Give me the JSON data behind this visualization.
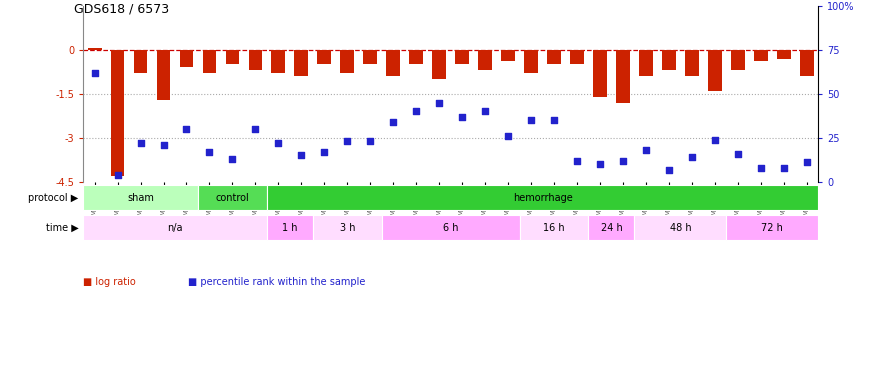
{
  "title": "GDS618 / 6573",
  "samples": [
    "GSM16636",
    "GSM16640",
    "GSM16641",
    "GSM16642",
    "GSM16643",
    "GSM16644",
    "GSM16637",
    "GSM16638",
    "GSM16639",
    "GSM16645",
    "GSM16646",
    "GSM16647",
    "GSM16648",
    "GSM16649",
    "GSM16650",
    "GSM16651",
    "GSM16652",
    "GSM16653",
    "GSM16654",
    "GSM16655",
    "GSM16656",
    "GSM16657",
    "GSM16658",
    "GSM16659",
    "GSM16660",
    "GSM16661",
    "GSM16662",
    "GSM16663",
    "GSM16664",
    "GSM16666",
    "GSM16667",
    "GSM16668"
  ],
  "log_ratio": [
    0.05,
    -4.3,
    -0.8,
    -1.7,
    -0.6,
    -0.8,
    -0.5,
    -0.7,
    -0.8,
    -0.9,
    -0.5,
    -0.8,
    -0.5,
    -0.9,
    -0.5,
    -1.0,
    -0.5,
    -0.7,
    -0.4,
    -0.8,
    -0.5,
    -0.5,
    -1.6,
    -1.8,
    -0.9,
    -0.7,
    -0.9,
    -1.4,
    -0.7,
    -0.4,
    -0.3,
    -0.9
  ],
  "percentile": [
    62,
    4,
    22,
    21,
    30,
    17,
    13,
    30,
    22,
    15,
    17,
    23,
    23,
    34,
    40,
    45,
    37,
    40,
    26,
    35,
    35,
    12,
    10,
    12,
    18,
    7,
    14,
    24,
    16,
    8,
    8,
    11
  ],
  "ylim_left": [
    -4.5,
    1.5
  ],
  "ylim_right": [
    0,
    100
  ],
  "bar_color": "#cc2200",
  "dot_color": "#2222cc",
  "hline_color": "#cc0000",
  "dotline_color": "#aaaaaa",
  "protocol_groups": [
    {
      "label": "sham",
      "start": 0,
      "end": 5,
      "color": "#bbffbb"
    },
    {
      "label": "control",
      "start": 5,
      "end": 8,
      "color": "#55dd55"
    },
    {
      "label": "hemorrhage",
      "start": 8,
      "end": 32,
      "color": "#33cc33"
    }
  ],
  "time_groups": [
    {
      "label": "n/a",
      "start": 0,
      "end": 8,
      "color": "#ffddff"
    },
    {
      "label": "1 h",
      "start": 8,
      "end": 10,
      "color": "#ffaaff"
    },
    {
      "label": "3 h",
      "start": 10,
      "end": 13,
      "color": "#ffddff"
    },
    {
      "label": "6 h",
      "start": 13,
      "end": 19,
      "color": "#ffaaff"
    },
    {
      "label": "16 h",
      "start": 19,
      "end": 22,
      "color": "#ffddff"
    },
    {
      "label": "24 h",
      "start": 22,
      "end": 24,
      "color": "#ffaaff"
    },
    {
      "label": "48 h",
      "start": 24,
      "end": 28,
      "color": "#ffddff"
    },
    {
      "label": "72 h",
      "start": 28,
      "end": 32,
      "color": "#ffaaff"
    }
  ],
  "background_color": "#ffffff"
}
